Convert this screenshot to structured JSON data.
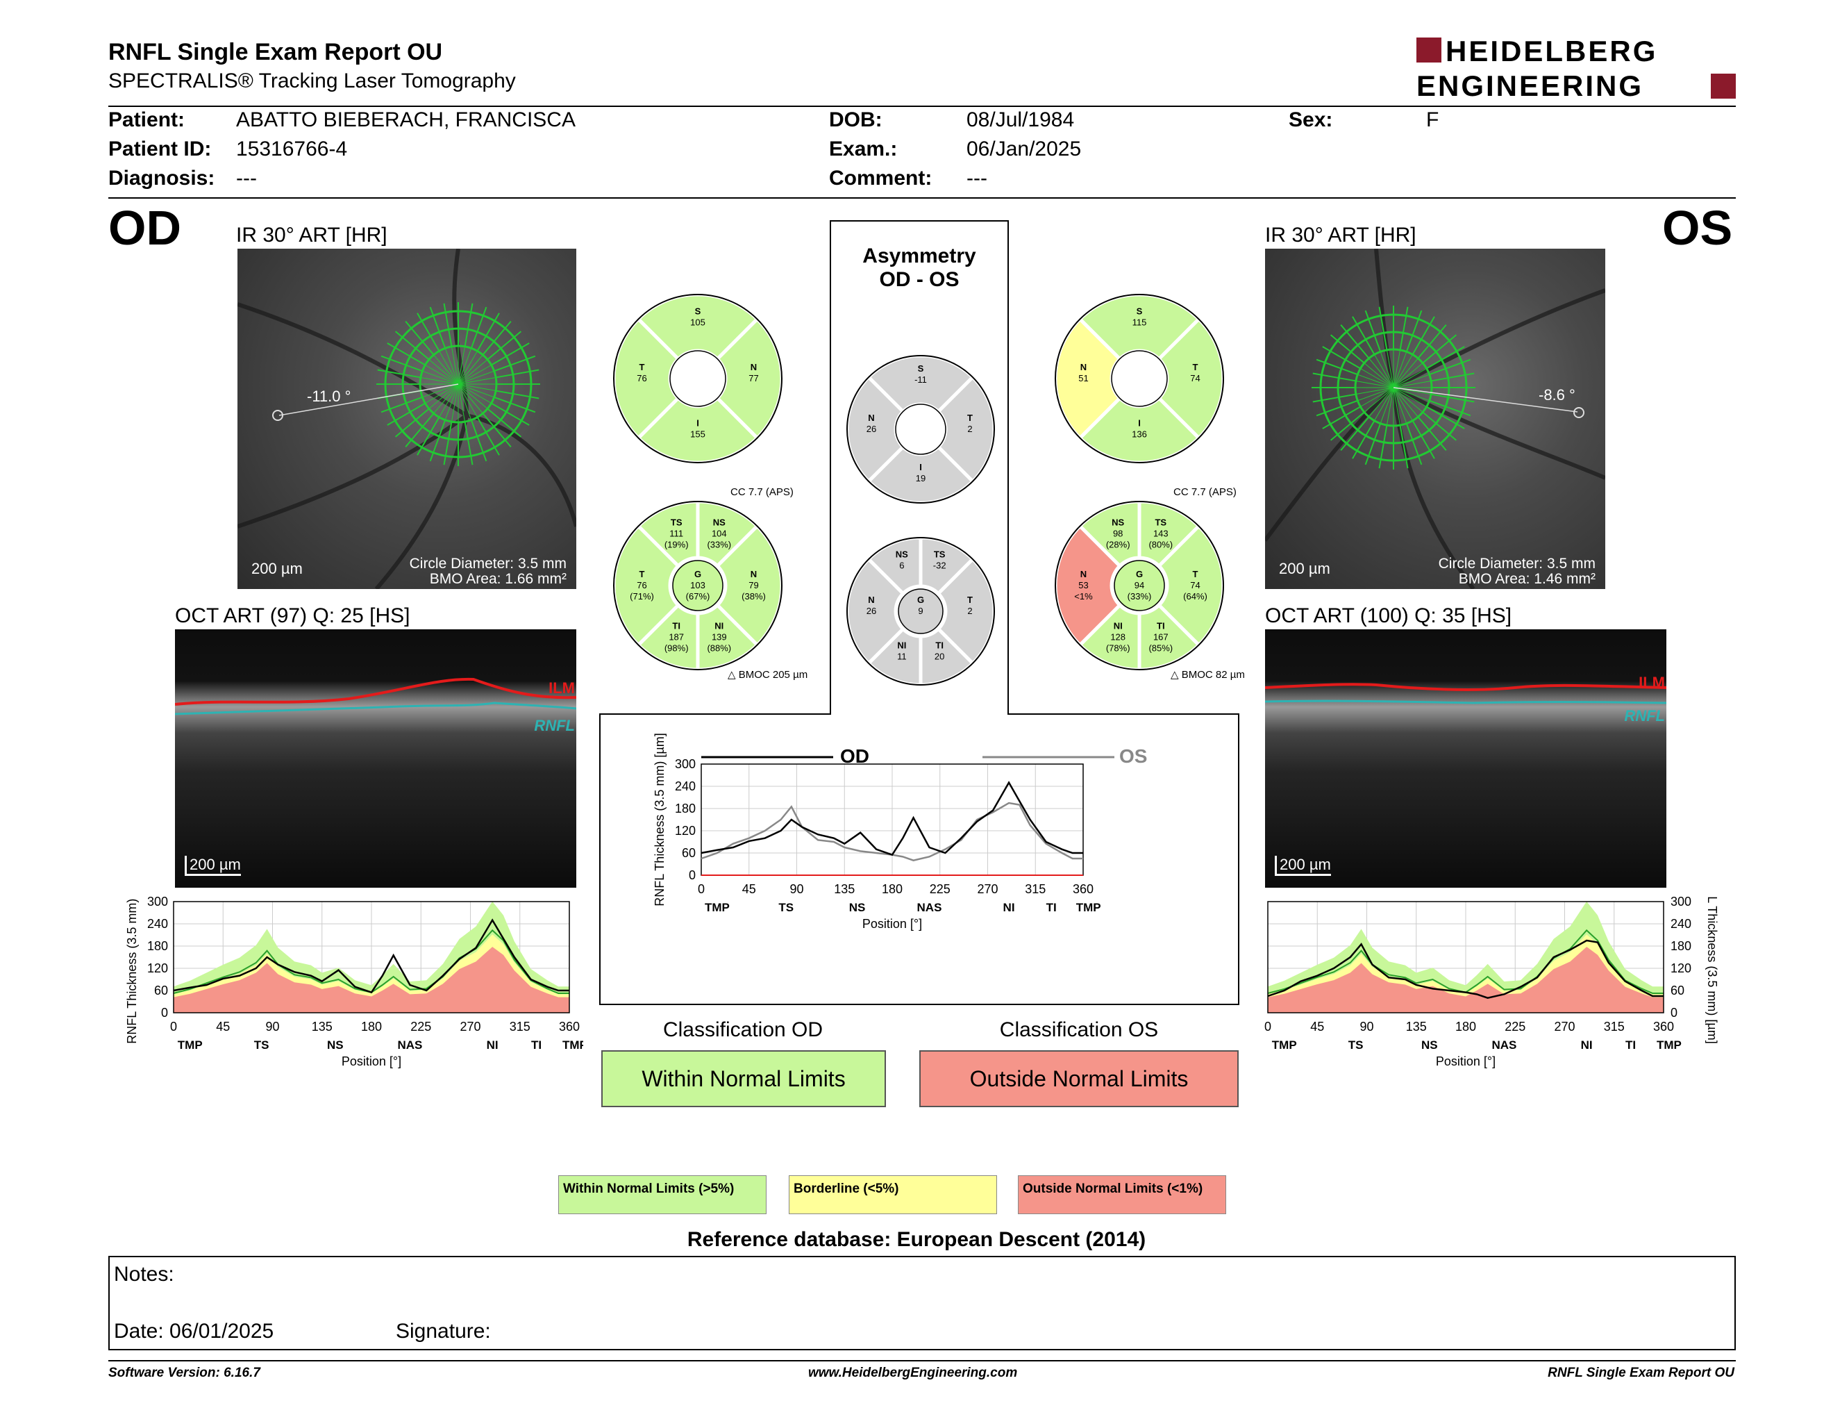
{
  "header": {
    "title": "RNFL Single Exam Report OU",
    "subtitle": "SPECTRALIS® Tracking Laser Tomography",
    "logo_line1": "HEIDELBERG",
    "logo_line2": "ENGINEERING"
  },
  "patient": {
    "name_label": "Patient:",
    "name": "ABATTO BIEBERACH, FRANCISCA",
    "id_label": "Patient ID:",
    "id": "15316766-4",
    "diag_label": "Diagnosis:",
    "diag": "---",
    "dob_label": "DOB:",
    "dob": "08/Jul/1984",
    "exam_label": "Exam.:",
    "exam": "06/Jan/2025",
    "comment_label": "Comment:",
    "comment": "---",
    "sex_label": "Sex:",
    "sex": "F"
  },
  "od": {
    "eye": "OD",
    "ir_label": "IR 30° ART [HR]",
    "angle": "-11.0 °",
    "scale": "200 µm",
    "circle": "Circle Diameter: 3.5 mm",
    "bmo": "BMO Area: 1.66 mm²",
    "oct_label": "OCT ART (97) Q: 25 [HS]",
    "oct_scale": "200 µm",
    "ilm": "ILM",
    "rnfl": "RNFL",
    "sectors4": {
      "S": "105",
      "T": "76",
      "N": "77",
      "I": "155"
    },
    "sectors6": {
      "TS": "111",
      "TS_p": "(19%)",
      "NS": "104",
      "NS_p": "(33%)",
      "T": "76",
      "T_p": "(71%)",
      "G": "103",
      "G_p": "(67%)",
      "N": "79",
      "N_p": "(38%)",
      "TI": "187",
      "TI_p": "(98%)",
      "NI": "139",
      "NI_p": "(88%)"
    },
    "cc": "CC 7.7 (APS)",
    "bmoc": "BMOC 205 µm",
    "classification_label": "Classification OD",
    "classification": "Within Normal Limits"
  },
  "os": {
    "eye": "OS",
    "ir_label": "IR 30° ART [HR]",
    "angle": "-8.6 °",
    "scale": "200 µm",
    "circle": "Circle Diameter: 3.5 mm",
    "bmo": "BMO Area: 1.46 mm²",
    "oct_label": "OCT ART (100) Q: 35 [HS]",
    "oct_scale": "200 µm",
    "ilm": "ILM",
    "rnfl": "RNFL",
    "sectors4": {
      "S": "115",
      "N": "51",
      "T": "74",
      "I": "136"
    },
    "sectors6": {
      "NS": "98",
      "NS_p": "(28%)",
      "TS": "143",
      "TS_p": "(80%)",
      "N": "53",
      "N_p": "<1%",
      "G": "94",
      "G_p": "(33%)",
      "T": "74",
      "T_p": "(64%)",
      "NI": "128",
      "NI_p": "(78%)",
      "TI": "167",
      "TI_p": "(85%)"
    },
    "cc": "CC 7.7 (APS)",
    "bmoc": "BMOC 82 µm",
    "classification_label": "Classification OS",
    "classification": "Outside Normal Limits"
  },
  "asym": {
    "title1": "Asymmetry",
    "title2": "OD - OS",
    "sectors4": {
      "S": "-11",
      "N": "26",
      "T": "2",
      "I": "19"
    },
    "sectors6": {
      "NS": "6",
      "TS": "-32",
      "N": "26",
      "G": "9",
      "T": "2",
      "NI": "11",
      "TI": "20"
    }
  },
  "chart_labels": {
    "ylabel": "RNFL Thickness (3.5 mm) [µm]",
    "xlabel": "Position [°]",
    "od_legend": "OD",
    "os_legend": "OS",
    "yticks": [
      "0",
      "60",
      "120",
      "180",
      "240",
      "300"
    ],
    "xticks": [
      "0",
      "45",
      "90",
      "135",
      "180",
      "225",
      "270",
      "315",
      "360"
    ],
    "regions": [
      "TMP",
      "TS",
      "NS",
      "NAS",
      "NI",
      "TI",
      "TMP"
    ]
  },
  "chart_data": [
    {
      "type": "line",
      "title": "",
      "xlabel": "Position [°]",
      "ylabel": "RNFL Thickness (3.5 mm) [µm]",
      "xlim": [
        0,
        360
      ],
      "ylim": [
        0,
        300
      ],
      "x": [
        0,
        15,
        30,
        45,
        60,
        75,
        85,
        95,
        110,
        125,
        135,
        150,
        165,
        180,
        190,
        200,
        215,
        230,
        245,
        260,
        275,
        290,
        300,
        310,
        325,
        340,
        350,
        360
      ],
      "series": [
        {
          "name": "OD",
          "values": [
            60,
            68,
            75,
            92,
            100,
            120,
            150,
            130,
            110,
            100,
            85,
            115,
            70,
            55,
            100,
            155,
            75,
            60,
            100,
            145,
            175,
            250,
            200,
            150,
            90,
            70,
            60,
            60
          ]
        },
        {
          "name": "OS",
          "values": [
            45,
            60,
            85,
            100,
            120,
            150,
            185,
            130,
            95,
            90,
            75,
            65,
            60,
            55,
            50,
            40,
            50,
            70,
            95,
            150,
            170,
            195,
            190,
            135,
            85,
            60,
            45,
            45
          ]
        }
      ]
    }
  ],
  "classification_legend": {
    "within": "Within Normal Limits (>5%)",
    "borderline": "Borderline (<5%)",
    "outside": "Outside Normal Limits (<1%)"
  },
  "reference": "Reference database: European Descent (2014)",
  "notes": {
    "label": "Notes:",
    "date_label": "Date: 06/01/2025",
    "signature_label": "Signature:"
  },
  "footer": {
    "version": "Software Version: 6.16.7",
    "website": "www.HeidelbergEngineering.com",
    "report": "RNFL Single Exam Report OU"
  },
  "colors": {
    "green": "#c8f79a",
    "yellow": "#ffff99",
    "red": "#f5958a",
    "gray": "#d3d3d3"
  }
}
